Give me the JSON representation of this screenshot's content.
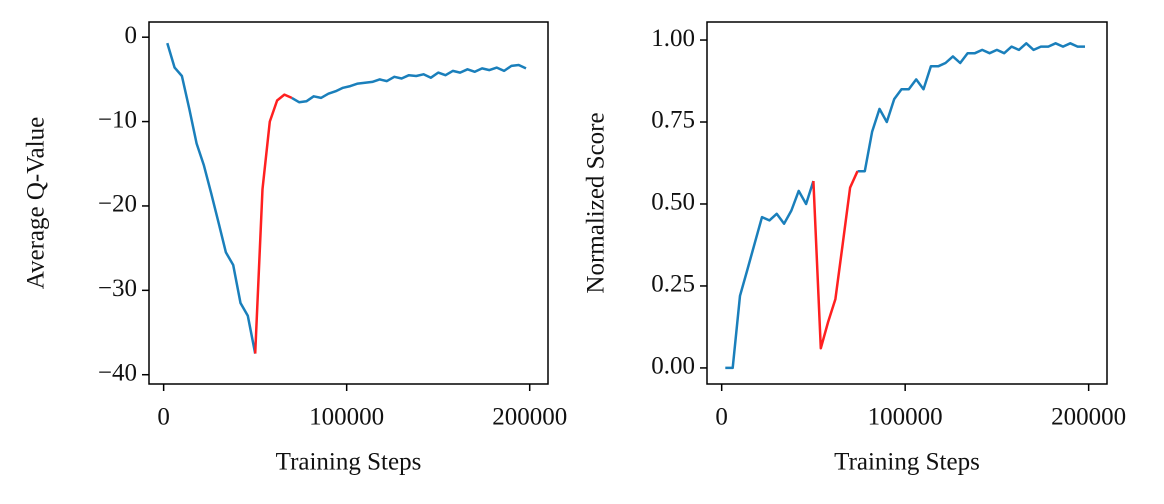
{
  "chart_data": [
    {
      "type": "line",
      "xlabel": "Training Steps",
      "ylabel": "Average Q-Value",
      "x": [
        2000,
        6000,
        10000,
        14000,
        18000,
        22000,
        26000,
        30000,
        34000,
        38000,
        42000,
        46000,
        50000,
        54000,
        58000,
        62000,
        66000,
        70000,
        74000,
        78000,
        82000,
        86000,
        90000,
        94000,
        98000,
        102000,
        106000,
        110000,
        114000,
        118000,
        122000,
        126000,
        130000,
        134000,
        138000,
        142000,
        146000,
        150000,
        154000,
        158000,
        162000,
        166000,
        170000,
        174000,
        178000,
        182000,
        186000,
        190000,
        194000,
        198000
      ],
      "series": [
        {
          "color": "#1a7fbb",
          "values": [
            -0.7,
            -3.6,
            -4.6,
            -8.5,
            -12.6,
            -15.2,
            -18.5,
            -22,
            -25.5,
            -27,
            -31.5,
            -33,
            -37.5,
            null,
            null,
            null,
            null,
            -7.2,
            -7.7,
            -7.6,
            -7,
            -7.2,
            -6.7,
            -6.4,
            -6,
            -5.8,
            -5.5,
            -5.4,
            -5.3,
            -5,
            -5.2,
            -4.7,
            -4.9,
            -4.5,
            -4.6,
            -4.4,
            -4.8,
            -4.2,
            -4.5,
            -4,
            -4.2,
            -3.8,
            -4.1,
            -3.7,
            -3.9,
            -3.6,
            -4,
            -3.4,
            -3.3,
            -3.7
          ]
        },
        {
          "color": "#ff2020",
          "values": [
            null,
            null,
            null,
            null,
            null,
            null,
            null,
            null,
            null,
            null,
            null,
            null,
            -37.5,
            -18,
            -10,
            -7.5,
            -6.8,
            -7.2,
            null,
            null,
            null,
            null,
            null,
            null,
            null,
            null,
            null,
            null,
            null,
            null,
            null,
            null,
            null,
            null,
            null,
            null,
            null,
            null,
            null,
            null,
            null,
            null,
            null,
            null,
            null,
            null,
            null,
            null,
            null,
            null
          ]
        }
      ],
      "xlim": [
        -8000,
        210000
      ],
      "xticks": [
        0,
        100000,
        200000
      ],
      "ylim": [
        -41.1,
        1.8
      ],
      "yticks": [
        0,
        {
          "value": -10,
          "label": "−10"
        },
        {
          "value": -20,
          "label": "−20"
        },
        {
          "value": -30,
          "label": "−30"
        },
        {
          "value": -40,
          "label": "−40"
        }
      ]
    },
    {
      "type": "line",
      "xlabel": "Training Steps",
      "ylabel": "Normalized Score",
      "x": [
        2000,
        6000,
        10000,
        14000,
        18000,
        22000,
        26000,
        30000,
        34000,
        38000,
        42000,
        46000,
        50000,
        54000,
        58000,
        62000,
        66000,
        70000,
        74000,
        78000,
        82000,
        86000,
        90000,
        94000,
        98000,
        102000,
        106000,
        110000,
        114000,
        118000,
        122000,
        126000,
        130000,
        134000,
        138000,
        142000,
        146000,
        150000,
        154000,
        158000,
        162000,
        166000,
        170000,
        174000,
        178000,
        182000,
        186000,
        190000,
        194000,
        198000
      ],
      "series": [
        {
          "color": "#1a7fbb",
          "values": [
            0,
            0,
            0.22,
            0.3,
            0.38,
            0.46,
            0.45,
            0.47,
            0.44,
            0.48,
            0.54,
            0.5,
            0.57,
            null,
            null,
            null,
            null,
            null,
            0.6,
            0.6,
            0.72,
            0.79,
            0.75,
            0.82,
            0.85,
            0.85,
            0.88,
            0.85,
            0.92,
            0.92,
            0.93,
            0.95,
            0.93,
            0.96,
            0.96,
            0.97,
            0.96,
            0.97,
            0.96,
            0.98,
            0.97,
            0.99,
            0.97,
            0.98,
            0.98,
            0.99,
            0.98,
            0.99,
            0.98,
            0.98
          ]
        },
        {
          "color": "#ff2020",
          "values": [
            null,
            null,
            null,
            null,
            null,
            null,
            null,
            null,
            null,
            null,
            null,
            null,
            0.57,
            0.06,
            0.14,
            0.21,
            0.38,
            0.55,
            0.6,
            null,
            null,
            null,
            null,
            null,
            null,
            null,
            null,
            null,
            null,
            null,
            null,
            null,
            null,
            null,
            null,
            null,
            null,
            null,
            null,
            null,
            null,
            null,
            null,
            null,
            null,
            null,
            null,
            null,
            null,
            null
          ]
        }
      ],
      "xlim": [
        -8000,
        210000
      ],
      "xticks": [
        0,
        100000,
        200000
      ],
      "ylim": [
        -0.049,
        1.055
      ],
      "yticks": [
        {
          "value": 0,
          "label": "0.00"
        },
        0.25,
        {
          "value": 0.5,
          "label": "0.50"
        },
        0.75,
        {
          "value": 1,
          "label": "1.00"
        }
      ]
    }
  ]
}
